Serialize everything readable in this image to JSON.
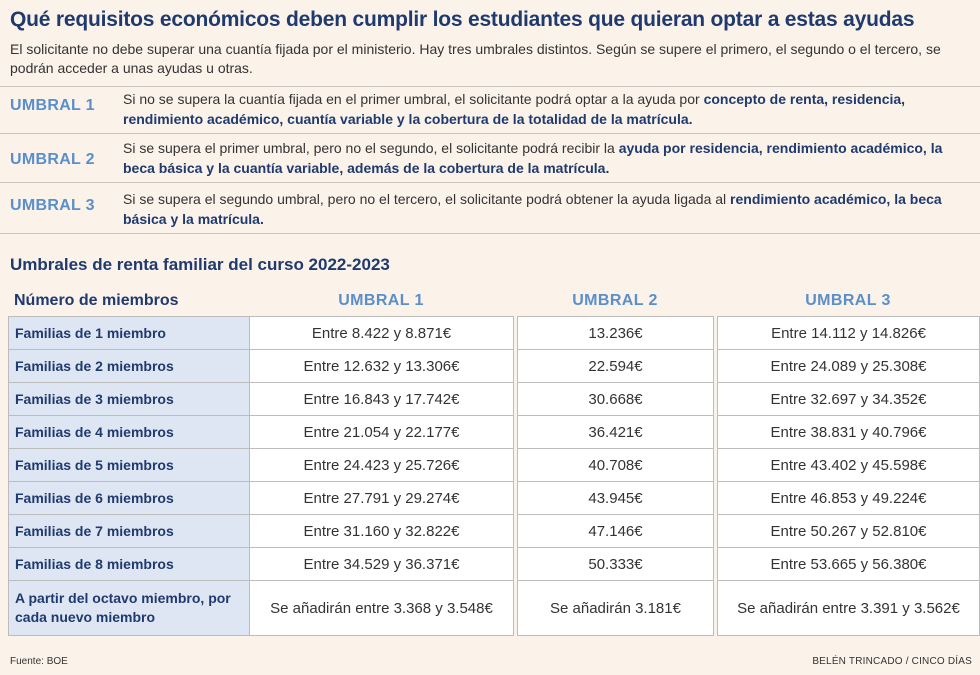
{
  "title": "Qué requisitos económicos deben cumplir los estudiantes que quieran optar a estas ayudas",
  "intro": "El solicitante no debe superar una cuantía fijada por el ministerio. Hay tres umbrales distintos. Según se supere el primero, el segundo o el tercero, se podrán acceder a unas ayudas u otras.",
  "umbrales": [
    {
      "label": "UMBRAL 1",
      "text_plain": "Si no se supera la cuantía fijada en el primer umbral, el solicitante podrá optar a la ayuda por ",
      "text_bold": "concepto de renta, residencia, rendimiento académico, cuantía variable y la cobertura de la totalidad de la matrícula."
    },
    {
      "label": "UMBRAL 2",
      "text_plain": "Si se supera el primer umbral, pero no el segundo, el solicitante podrá recibir la ",
      "text_bold": "ayuda por residencia, rendimiento académico, la beca básica y la cuantía variable, además de la cobertura de la matrícula."
    },
    {
      "label": "UMBRAL 3",
      "text_plain": "Si se supera el segundo umbral, pero no el tercero, el solicitante podrá obtener la ayuda ligada al ",
      "text_bold": "rendimiento académico, la beca básica y la matrícula."
    }
  ],
  "table": {
    "title": "Umbrales de renta familiar del curso 2022-2023",
    "headers": [
      "Número de miembros",
      "UMBRAL 1",
      "UMBRAL 2",
      "UMBRAL 3"
    ],
    "rows": [
      [
        "Familias de 1 miembro",
        "Entre 8.422 y 8.871€",
        "13.236€",
        "Entre 14.112 y 14.826€"
      ],
      [
        "Familias de 2 miembros",
        "Entre 12.632 y 13.306€",
        "22.594€",
        "Entre 24.089 y 25.308€"
      ],
      [
        "Familias de 3 miembros",
        "Entre 16.843 y 17.742€",
        "30.668€",
        "Entre 32.697 y 34.352€"
      ],
      [
        "Familias de 4 miembros",
        "Entre 21.054 y 22.177€",
        "36.421€",
        "Entre 38.831 y 40.796€"
      ],
      [
        "Familias de 5 miembros",
        "Entre 24.423 y 25.726€",
        "40.708€",
        "Entre 43.402 y 45.598€"
      ],
      [
        "Familias de 6 miembros",
        "Entre 27.791 y 29.274€",
        "43.945€",
        "Entre 46.853 y 49.224€"
      ],
      [
        "Familias de 7 miembros",
        "Entre 31.160 y 32.822€",
        "47.146€",
        "Entre 50.267 y 52.810€"
      ],
      [
        "Familias de 8 miembros",
        "Entre 34.529 y 36.371€",
        "50.333€",
        "Entre 53.665 y 56.380€"
      ],
      [
        "A partir del octavo miembro, por cada nuevo miembro",
        "Se añadirán entre 3.368 y 3.548€",
        "Se añadirán 3.181€",
        "Se añadirán entre 3.391 y 3.562€"
      ]
    ]
  },
  "footer": {
    "source": "Fuente: BOE",
    "credit": "BELÉN TRINCADO / CINCO DÍAS"
  },
  "colors": {
    "background": "#fbf2ea",
    "title": "#1f3a6e",
    "accent": "#5a8fca",
    "label_cell": "#dfe6f3"
  }
}
